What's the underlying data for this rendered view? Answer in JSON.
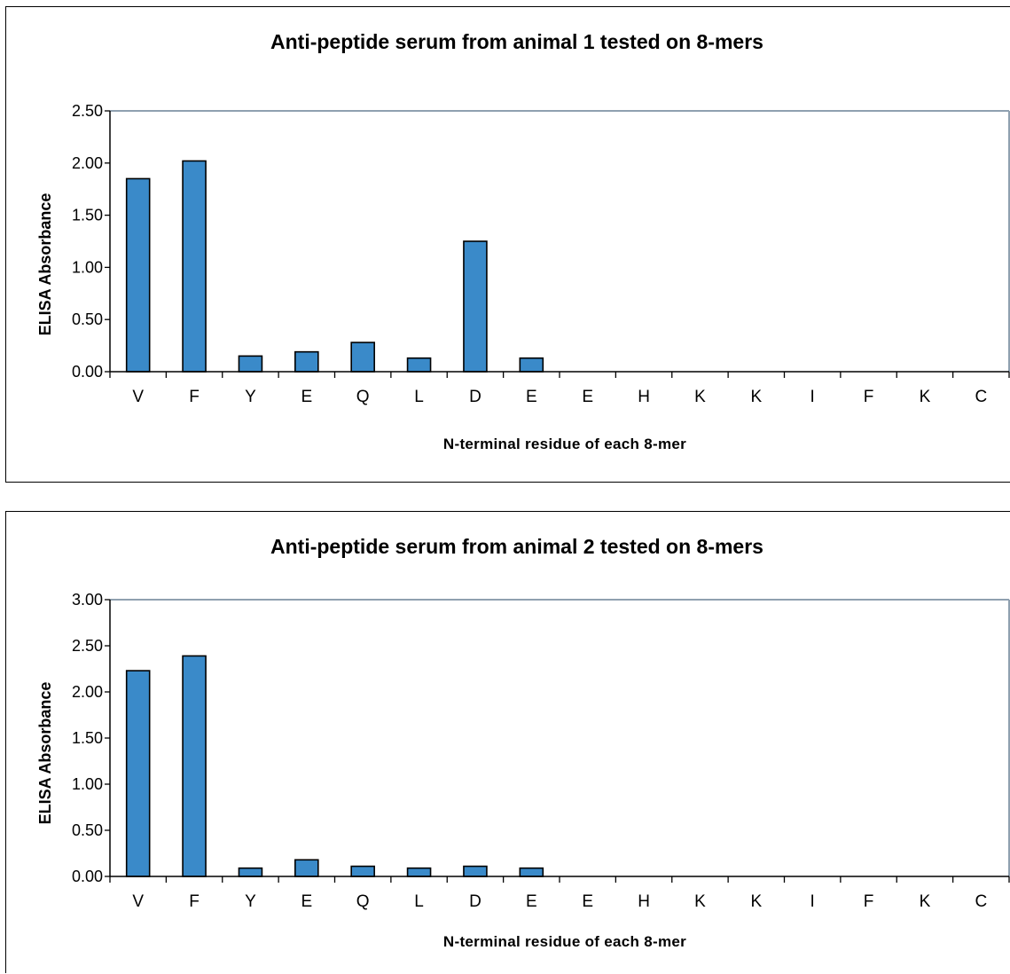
{
  "chart_data": [
    {
      "type": "bar",
      "title": "Anti-peptide serum from animal 1 tested on 8-mers",
      "xlabel": "N-terminal residue of each 8-mer",
      "ylabel": "ELISA Absorbance",
      "categories": [
        "V",
        "F",
        "Y",
        "E",
        "Q",
        "L",
        "D",
        "E",
        "E",
        "H",
        "K",
        "K",
        "I",
        "F",
        "K",
        "C"
      ],
      "values": [
        1.85,
        2.02,
        0.15,
        0.19,
        0.28,
        0.13,
        1.25,
        0.13,
        0,
        0,
        0,
        0,
        0,
        0,
        0,
        0
      ],
      "ylim": [
        0,
        2.5
      ],
      "yticks": [
        "0.00",
        "0.50",
        "1.00",
        "1.50",
        "2.00",
        "2.50"
      ],
      "yticks_values": [
        0,
        0.5,
        1.0,
        1.5,
        2.0,
        2.5
      ],
      "grid": false,
      "bar_color": "#3a8ac9",
      "axis_color": "#8fa0b0"
    },
    {
      "type": "bar",
      "title": "Anti-peptide serum from animal 2 tested on 8-mers",
      "xlabel": "N-terminal residue of each 8-mer",
      "ylabel": "ELISA Absorbance",
      "categories": [
        "V",
        "F",
        "Y",
        "E",
        "Q",
        "L",
        "D",
        "E",
        "E",
        "H",
        "K",
        "K",
        "I",
        "F",
        "K",
        "C"
      ],
      "values": [
        2.23,
        2.39,
        0.09,
        0.18,
        0.11,
        0.09,
        0.11,
        0.09,
        0,
        0,
        0,
        0,
        0,
        0,
        0,
        0
      ],
      "ylim": [
        0,
        3.0
      ],
      "yticks": [
        "0.00",
        "0.50",
        "1.00",
        "1.50",
        "2.00",
        "2.50",
        "3.00"
      ],
      "yticks_values": [
        0,
        0.5,
        1.0,
        1.5,
        2.0,
        2.5,
        3.0
      ],
      "grid": false,
      "bar_color": "#3a8ac9",
      "axis_color": "#8fa0b0"
    }
  ]
}
